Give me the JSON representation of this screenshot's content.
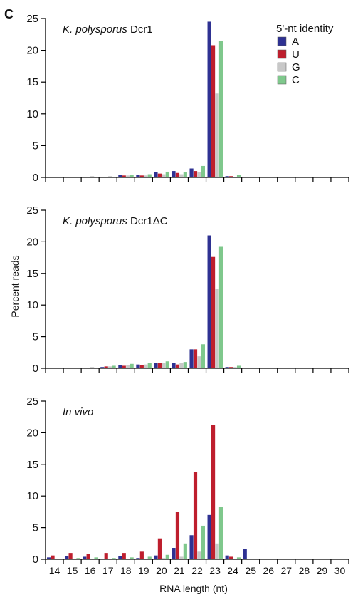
{
  "panel_label": "C",
  "legend": {
    "title": "5'-nt identity",
    "placement": "top-right",
    "entries": [
      {
        "label": "A",
        "color": "#2e3192"
      },
      {
        "label": "U",
        "color": "#be1e2d"
      },
      {
        "label": "G",
        "color": "#c8c8c8"
      },
      {
        "label": "C",
        "color": "#7fc88c"
      }
    ]
  },
  "axis": {
    "ylabel": "Percent reads",
    "xlabel": "RNA length (nt)",
    "xticks": [
      "14",
      "15",
      "16",
      "17",
      "18",
      "19",
      "20",
      "21",
      "22",
      "23",
      "24",
      "25",
      "26",
      "27",
      "28",
      "29",
      "30"
    ],
    "yticks": [
      "0",
      "5",
      "10",
      "15",
      "20",
      "25"
    ]
  },
  "chart_data": [
    {
      "type": "bar",
      "title_italic": "K. polysporus",
      "title_rest": " Dcr1",
      "categories": [
        "14",
        "15",
        "16",
        "17",
        "18",
        "19",
        "20",
        "21",
        "22",
        "23",
        "24",
        "25",
        "26",
        "27",
        "28",
        "29",
        "30"
      ],
      "ylim": [
        0,
        25
      ],
      "series": [
        {
          "name": "A",
          "values": [
            0,
            0,
            0,
            0,
            0.4,
            0.4,
            0.8,
            1.0,
            1.4,
            24.5,
            0.2,
            0,
            0,
            0,
            0,
            0,
            0
          ]
        },
        {
          "name": "U",
          "values": [
            0,
            0,
            0,
            0,
            0.3,
            0.3,
            0.6,
            0.7,
            1.0,
            20.8,
            0.2,
            0,
            0,
            0,
            0,
            0,
            0
          ]
        },
        {
          "name": "G",
          "values": [
            0,
            0,
            0.2,
            0.2,
            0.3,
            0.3,
            0.5,
            0.5,
            0.8,
            13.2,
            0.1,
            0,
            0,
            0,
            0,
            0,
            0
          ]
        },
        {
          "name": "C",
          "values": [
            0,
            0,
            0,
            0,
            0.4,
            0.5,
            0.9,
            0.8,
            1.8,
            21.5,
            0.4,
            0,
            0,
            0,
            0,
            0,
            0
          ]
        }
      ]
    },
    {
      "type": "bar",
      "title_italic": "K. polysporus",
      "title_rest": " Dcr1ΔC",
      "categories": [
        "14",
        "15",
        "16",
        "17",
        "18",
        "19",
        "20",
        "21",
        "22",
        "23",
        "24",
        "25",
        "26",
        "27",
        "28",
        "29",
        "30"
      ],
      "ylim": [
        0,
        25
      ],
      "series": [
        {
          "name": "A",
          "values": [
            0,
            0,
            0,
            0.2,
            0.5,
            0.6,
            0.8,
            0.8,
            3.0,
            21.0,
            0.2,
            0,
            0,
            0,
            0,
            0,
            0
          ]
        },
        {
          "name": "U",
          "values": [
            0,
            0,
            0,
            0.3,
            0.4,
            0.5,
            0.8,
            0.6,
            3.0,
            17.6,
            0.2,
            0,
            0,
            0,
            0,
            0,
            0
          ]
        },
        {
          "name": "G",
          "values": [
            0,
            0,
            0.2,
            0.3,
            0.5,
            0.6,
            0.9,
            0.8,
            1.9,
            12.5,
            0.2,
            0,
            0,
            0,
            0,
            0,
            0
          ]
        },
        {
          "name": "C",
          "values": [
            0,
            0,
            0,
            0.4,
            0.7,
            0.8,
            1.1,
            1.0,
            3.8,
            19.2,
            0.4,
            0,
            0,
            0,
            0,
            0,
            0
          ]
        }
      ]
    },
    {
      "type": "bar",
      "title_italic": "In vivo",
      "title_rest": "",
      "categories": [
        "14",
        "15",
        "16",
        "17",
        "18",
        "19",
        "20",
        "21",
        "22",
        "23",
        "24",
        "25",
        "26",
        "27",
        "28",
        "29",
        "30"
      ],
      "ylim": [
        0,
        25
      ],
      "series": [
        {
          "name": "A",
          "values": [
            0.3,
            0.5,
            0.4,
            0.1,
            0.5,
            0.2,
            0.6,
            1.8,
            3.8,
            7.0,
            0.6,
            1.6,
            0,
            0,
            0,
            0,
            0
          ]
        },
        {
          "name": "U",
          "values": [
            0.6,
            1.0,
            0.8,
            1.0,
            1.0,
            1.2,
            3.3,
            7.5,
            13.8,
            21.2,
            0.4,
            0.1,
            0.1,
            0.1,
            0.1,
            0,
            0
          ]
        },
        {
          "name": "G",
          "values": [
            0,
            0,
            0,
            0,
            0.1,
            0.1,
            0.2,
            0.4,
            1.2,
            2.5,
            0.1,
            0,
            0,
            0,
            0,
            0,
            0
          ]
        },
        {
          "name": "C",
          "values": [
            0,
            0.2,
            0.3,
            0.2,
            0.3,
            0.4,
            0.7,
            2.5,
            5.3,
            8.3,
            0.3,
            0,
            0,
            0,
            0,
            0,
            0
          ]
        }
      ]
    }
  ]
}
